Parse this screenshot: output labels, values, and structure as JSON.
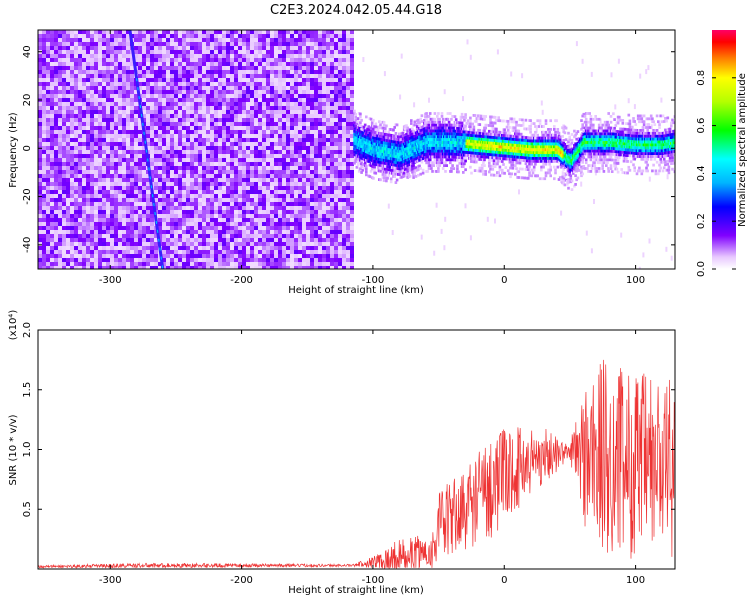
{
  "figure": {
    "title": "C2E3.2024.042.05.44.G18"
  },
  "chart_data": [
    {
      "type": "heatmap",
      "xlabel": "Height of straight line (km)",
      "ylabel": "Frequency (Hz)",
      "xlim": [
        -355,
        130
      ],
      "ylim": [
        -50,
        49
      ],
      "xticks": [
        -300,
        -200,
        -100,
        0,
        100
      ],
      "yticks": [
        -40,
        -20,
        0,
        20,
        40
      ],
      "noise_region_x": [
        -355,
        -115
      ],
      "meteor_trace": {
        "x": [
          -285,
          -260
        ],
        "y": [
          49,
          -50
        ]
      },
      "signal_band": [
        {
          "x": -115,
          "y": 4
        },
        {
          "x": -100,
          "y": 0
        },
        {
          "x": -80,
          "y": -2
        },
        {
          "x": -60,
          "y": 3
        },
        {
          "x": -40,
          "y": 3
        },
        {
          "x": -20,
          "y": 2
        },
        {
          "x": 0,
          "y": 1
        },
        {
          "x": 20,
          "y": 0
        },
        {
          "x": 40,
          "y": 0
        },
        {
          "x": 50,
          "y": -5
        },
        {
          "x": 60,
          "y": 3
        },
        {
          "x": 80,
          "y": 3
        },
        {
          "x": 100,
          "y": 2
        },
        {
          "x": 120,
          "y": 2
        },
        {
          "x": 130,
          "y": 3
        }
      ],
      "colorbar": {
        "label": "Normalized spectral amplitude",
        "range": [
          0.0,
          1.0
        ],
        "ticks": [
          "0.0",
          "0.2",
          "0.4",
          "0.6",
          "0.8"
        ]
      }
    },
    {
      "type": "line",
      "xlabel": "Height of straight line (km)",
      "ylabel": "SNR (10 * v/v)",
      "scale_label": "(x10⁴)",
      "xlim": [
        -355,
        130
      ],
      "ylim": [
        0.0,
        2.0
      ],
      "xticks": [
        -300,
        -200,
        -100,
        0,
        100
      ],
      "yticks": [
        "0.5",
        "1.0",
        "1.5",
        "2.0"
      ],
      "series": [
        {
          "color": "#ee3333",
          "envelope": [
            {
              "x": -355,
              "mean": 0.02,
              "amp": 0.01
            },
            {
              "x": -270,
              "mean": 0.03,
              "amp": 0.02
            },
            {
              "x": -115,
              "mean": 0.03,
              "amp": 0.01
            },
            {
              "x": -100,
              "mean": 0.06,
              "amp": 0.05
            },
            {
              "x": -80,
              "mean": 0.1,
              "amp": 0.15
            },
            {
              "x": -55,
              "mean": 0.15,
              "amp": 0.15
            },
            {
              "x": -50,
              "mean": 0.35,
              "amp": 0.3
            },
            {
              "x": -30,
              "mean": 0.5,
              "amp": 0.35
            },
            {
              "x": -10,
              "mean": 0.7,
              "amp": 0.45
            },
            {
              "x": 10,
              "mean": 0.85,
              "amp": 0.35
            },
            {
              "x": 30,
              "mean": 0.95,
              "amp": 0.25
            },
            {
              "x": 50,
              "mean": 0.98,
              "amp": 0.05
            },
            {
              "x": 55,
              "mean": 0.95,
              "amp": 0.45
            },
            {
              "x": 70,
              "mean": 0.95,
              "amp": 0.85
            },
            {
              "x": 90,
              "mean": 0.9,
              "amp": 0.8
            },
            {
              "x": 110,
              "mean": 0.85,
              "amp": 0.8
            },
            {
              "x": 130,
              "mean": 0.85,
              "amp": 0.75
            }
          ]
        }
      ]
    }
  ]
}
